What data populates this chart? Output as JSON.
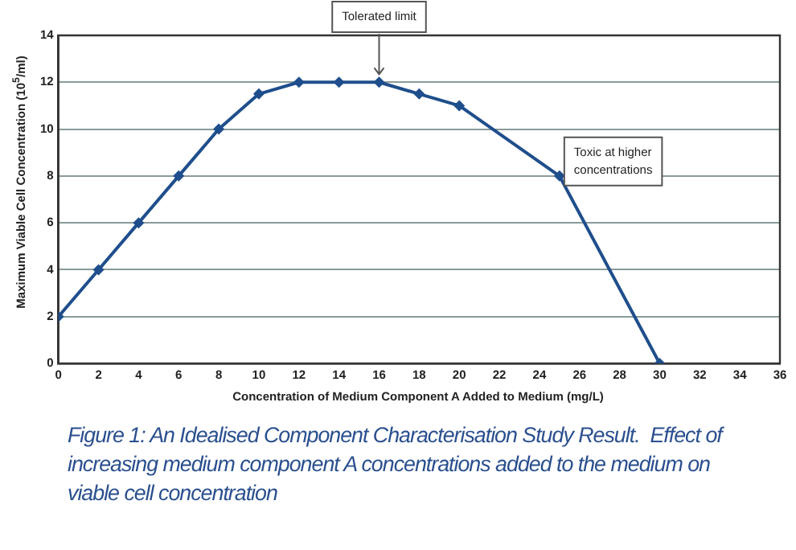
{
  "chart_data": {
    "type": "line",
    "xlabel": "Concentration of Medium Component A Added to Medium (mg/L)",
    "ylabel": "Maximum Viable Cell Concentration (10$^{5}$/ml)",
    "series": [
      {
        "color": "#1f4e8c",
        "x": [
          0,
          2,
          4,
          6,
          8,
          10,
          12,
          14,
          16,
          18,
          20,
          25,
          30
        ],
        "values": [
          2,
          4,
          6,
          8,
          10,
          11.5,
          12,
          12,
          12,
          11.5,
          11,
          8,
          0
        ]
      }
    ],
    "xlim": [
      0,
      36
    ],
    "xticks": [
      0,
      2,
      4,
      6,
      8,
      10,
      12,
      14,
      16,
      18,
      20,
      22,
      24,
      26,
      28,
      30,
      32,
      34,
      36
    ],
    "ylim": [
      0,
      14
    ],
    "yticks": [
      0,
      2,
      4,
      6,
      8,
      10,
      12,
      14
    ],
    "grid": "y",
    "legend": false,
    "marker": "diamond",
    "line_style": "solid",
    "annotations": [
      {
        "text": "Tolerated limit",
        "x": 16,
        "y": 12
      },
      {
        "text": "Toxic at higher concentrations",
        "x": 25,
        "y": 8
      },
      "Figure 1: An Idealised Component Characterisation Study Result.  Effect of increasing medium component A concentrations added to the medium on viable cell concentration"
    ]
  }
}
